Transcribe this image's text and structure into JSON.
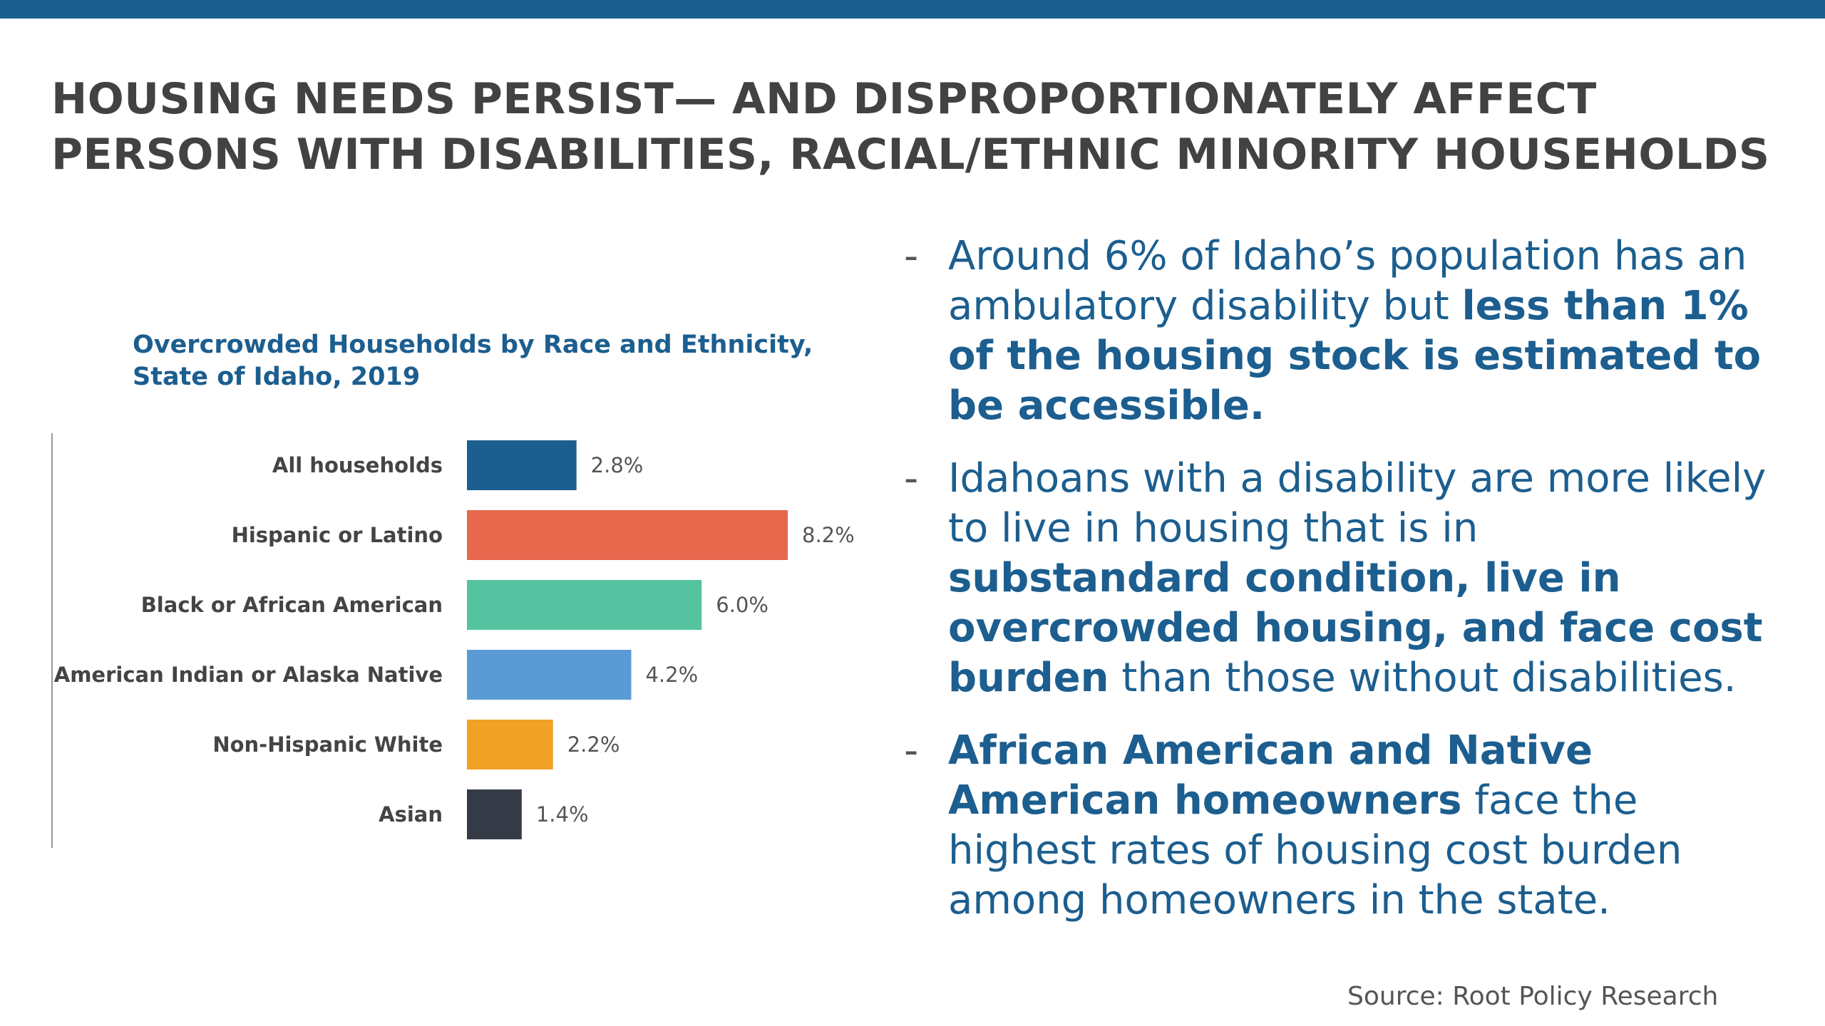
{
  "headline": {
    "line1": "HOUSING NEEDS PERSIST— AND DISPROPORTIONATELY AFFECT",
    "line2": "PERSONS WITH DISABILITIES, RACIAL/ETHNIC MINORITY HOUSEHOLDS"
  },
  "chart_data": {
    "type": "bar",
    "orientation": "horizontal",
    "title": "Overcrowded Households by Race and Ethnicity, State of Idaho, 2019",
    "title_lines": [
      "Overcrowded Households by Race and Ethnicity,",
      "State of Idaho, 2019"
    ],
    "categories": [
      "All households",
      "Hispanic or Latino",
      "Black or African American",
      "American Indian or Alaska Native",
      "Non-Hispanic White",
      "Asian"
    ],
    "values": [
      2.8,
      8.2,
      6.0,
      4.2,
      2.2,
      1.4
    ],
    "value_labels": [
      "2.8%",
      "8.2%",
      "6.0%",
      "4.2%",
      "2.2%",
      "1.4%"
    ],
    "colors": [
      "#1c5e8f",
      "#e8684e",
      "#55c3a0",
      "#5b9bd5",
      "#f0a126",
      "#343a46"
    ],
    "unit": "%",
    "xlim": [
      0,
      8.2
    ],
    "grid": false
  },
  "bullets": [
    {
      "dash": "-",
      "segments": [
        {
          "text": "Around 6% of Idaho’s population has an ambulatory disability but ",
          "bold": false
        },
        {
          "text": "less than 1% of the housing stock is estimated to be accessible.",
          "bold": true
        }
      ]
    },
    {
      "dash": "-",
      "segments": [
        {
          "text": "Idahoans with a disability are more likely to live in housing that is in ",
          "bold": false
        },
        {
          "text": "substandard condition, live in overcrowded housing, and face cost burden",
          "bold": true
        },
        {
          "text": " than those without disabilities.",
          "bold": false
        }
      ]
    },
    {
      "dash": "-",
      "segments": [
        {
          "text": "African American and Native American homeowners",
          "bold": true
        },
        {
          "text": " face the highest rates of housing cost burden among homeowners in the state.",
          "bold": false
        }
      ]
    }
  ],
  "source": "Source: Root Policy Research"
}
